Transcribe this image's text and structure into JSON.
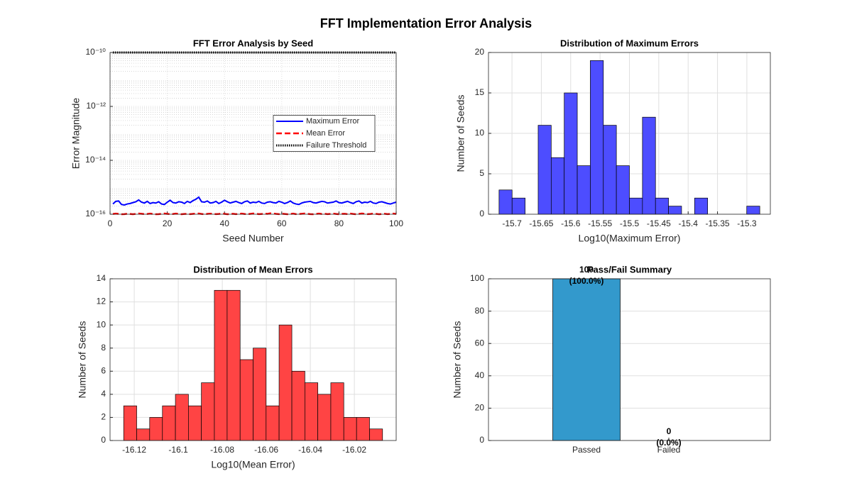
{
  "title": "FFT Implementation Error Analysis",
  "chart_data": [
    {
      "type": "line",
      "title": "FFT Error Analysis by Seed",
      "xlabel": "Seed Number",
      "ylabel": "Error Magnitude",
      "x": [
        1,
        2,
        3,
        4,
        5,
        6,
        7,
        8,
        9,
        10,
        11,
        12,
        13,
        14,
        15,
        16,
        17,
        18,
        19,
        20,
        21,
        22,
        23,
        24,
        25,
        26,
        27,
        28,
        29,
        30,
        31,
        32,
        33,
        34,
        35,
        36,
        37,
        38,
        39,
        40,
        41,
        42,
        43,
        44,
        45,
        46,
        47,
        48,
        49,
        50,
        51,
        52,
        53,
        54,
        55,
        56,
        57,
        58,
        59,
        60,
        61,
        62,
        63,
        64,
        65,
        66,
        67,
        68,
        69,
        70,
        71,
        72,
        73,
        74,
        75,
        76,
        77,
        78,
        79,
        80,
        81,
        82,
        83,
        84,
        85,
        86,
        87,
        88,
        89,
        90,
        91,
        92,
        93,
        94,
        95,
        96,
        97,
        98,
        99,
        100
      ],
      "series": [
        {
          "name": "Maximum Error",
          "color": "#0000ff",
          "style": "solid",
          "values": [
            2.4e-16,
            3e-16,
            3.1e-16,
            2.3e-16,
            2.2e-16,
            2.4e-16,
            2.5e-16,
            2.7e-16,
            2.9e-16,
            3.4e-16,
            2.8e-16,
            2.6e-16,
            3e-16,
            2.5e-16,
            2.7e-16,
            2.6e-16,
            2.9e-16,
            2.4e-16,
            2.3e-16,
            2.8e-16,
            3.3e-16,
            2.7e-16,
            2.6e-16,
            2.9e-16,
            2.8e-16,
            2.5e-16,
            3e-16,
            2.7e-16,
            3.2e-16,
            3.6e-16,
            4.3e-16,
            2.9e-16,
            2.8e-16,
            3.1e-16,
            2.6e-16,
            2.7e-16,
            3e-16,
            2.5e-16,
            2.8e-16,
            3.3e-16,
            2.9e-16,
            2.6e-16,
            2.8e-16,
            3e-16,
            2.7e-16,
            2.5e-16,
            2.9e-16,
            3.1e-16,
            2.6e-16,
            2.8e-16,
            2.7e-16,
            3e-16,
            2.6e-16,
            2.5e-16,
            2.8e-16,
            2.9e-16,
            2.7e-16,
            2.6e-16,
            3e-16,
            2.8e-16,
            2.5e-16,
            2.7e-16,
            3.1e-16,
            2.6e-16,
            2.4e-16,
            2.3e-16,
            2.6e-16,
            2.8e-16,
            2.9e-16,
            3e-16,
            2.7e-16,
            2.6e-16,
            2.8e-16,
            3e-16,
            2.9e-16,
            2.6e-16,
            2.7e-16,
            2.8e-16,
            3.1e-16,
            2.7e-16,
            2.6e-16,
            2.8e-16,
            3e-16,
            2.7e-16,
            2.5e-16,
            2.9e-16,
            3.1e-16,
            2.6e-16,
            2.8e-16,
            2.7e-16,
            3e-16,
            2.6e-16,
            2.5e-16,
            2.8e-16,
            2.9e-16,
            2.7e-16,
            2.5e-16,
            2.4e-16,
            2.6e-16,
            2.8e-16
          ]
        },
        {
          "name": "Mean Error",
          "color": "#ff0000",
          "style": "dashed",
          "values": [
            1.02e-16,
            1.05e-16,
            1.03e-16,
            1e-16,
            1.01e-16,
            1.04e-16,
            1.02e-16,
            1e-16,
            1.03e-16,
            1.06e-16,
            1.04e-16,
            1.01e-16,
            1.02e-16,
            1.05e-16,
            1.03e-16,
            1e-16,
            1.01e-16,
            1.04e-16,
            1.06e-16,
            1.03e-16,
            1.01e-16,
            1.02e-16,
            1.05e-16,
            1.03e-16,
            1e-16,
            1.02e-16,
            1.04e-16,
            1.01e-16,
            1.03e-16,
            1.05e-16,
            1.06e-16,
            1.02e-16,
            1e-16,
            1.03e-16,
            1.05e-16,
            1.04e-16,
            1.01e-16,
            1.02e-16,
            1.06e-16,
            1.03e-16,
            1e-16,
            1.02e-16,
            1.04e-16,
            1.01e-16,
            1.03e-16,
            1.05e-16,
            1.02e-16,
            1e-16,
            1.03e-16,
            1.06e-16,
            1.04e-16,
            1.01e-16,
            1.02e-16,
            1.05e-16,
            1.03e-16,
            1.08e-16,
            1.07e-16,
            1.03e-16,
            1.01e-16,
            1.04e-16,
            1.02e-16,
            1e-16,
            1.03e-16,
            1.05e-16,
            1.01e-16,
            1.02e-16,
            1.04e-16,
            1.06e-16,
            1.03e-16,
            1.01e-16,
            1e-16,
            1.03e-16,
            1.05e-16,
            1.02e-16,
            1.04e-16,
            1.01e-16,
            1.03e-16,
            1.06e-16,
            1.02e-16,
            1e-16,
            1.03e-16,
            1.04e-16,
            1.01e-16,
            1.05e-16,
            1.02e-16,
            1e-16,
            1.03e-16,
            1.06e-16,
            1.04e-16,
            1.01e-16,
            1.02e-16,
            1.05e-16,
            1.03e-16,
            1e-16,
            1.02e-16,
            1.04e-16,
            1.01e-16,
            1.03e-16,
            1.05e-16,
            1.02e-16
          ]
        },
        {
          "name": "Failure Threshold",
          "color": "#000000",
          "style": "dotted",
          "x": [
            1,
            100
          ],
          "values": [
            1e-10,
            1e-10
          ]
        }
      ],
      "xlim": [
        0,
        100
      ],
      "xticks": [
        0,
        20,
        40,
        60,
        80,
        100
      ],
      "ylog": true,
      "ylim": [
        1e-16,
        1e-10
      ],
      "yticks": [
        {
          "value": 1e-16,
          "label": "10⁻¹⁶"
        },
        {
          "value": 1e-14,
          "label": "10⁻¹⁴"
        },
        {
          "value": 1e-12,
          "label": "10⁻¹²"
        },
        {
          "value": 1e-10,
          "label": "10⁻¹⁰"
        }
      ],
      "grid": true,
      "legend": "east"
    },
    {
      "type": "histogram",
      "title": "Distribution of Maximum Errors",
      "xlabel": "Log10(Maximum Error)",
      "ylabel": "Number of Seeds",
      "color": "#4d4dff",
      "bins": [
        -15.722,
        -15.6998,
        -15.6776,
        -15.6554,
        -15.6332,
        -15.611,
        -15.5888,
        -15.5666,
        -15.5444,
        -15.5222,
        -15.5,
        -15.4778,
        -15.4556,
        -15.4334,
        -15.4112,
        -15.389,
        -15.3668,
        -15.3446,
        -15.3224,
        -15.3002,
        -15.278
      ],
      "values": [
        3,
        2,
        0,
        11,
        7,
        15,
        6,
        19,
        11,
        6,
        2,
        12,
        2,
        1,
        0,
        2,
        0,
        0,
        0,
        1
      ],
      "xlim": [
        -15.74,
        -15.26
      ],
      "xticks": [
        -15.7,
        -15.65,
        -15.6,
        -15.55,
        -15.5,
        -15.45,
        -15.4,
        -15.35,
        -15.3
      ],
      "ylim": [
        0,
        20
      ],
      "yticks": [
        0,
        5,
        10,
        15,
        20
      ],
      "grid": true
    },
    {
      "type": "histogram",
      "title": "Distribution of Mean Errors",
      "xlabel": "Log10(Mean Error)",
      "ylabel": "Number of Seeds",
      "color": "#ff4444",
      "bins": [
        -16.1248,
        -16.1189,
        -16.113,
        -16.1072,
        -16.1013,
        -16.0954,
        -16.0895,
        -16.0836,
        -16.0778,
        -16.0719,
        -16.066,
        -16.0601,
        -16.0542,
        -16.0484,
        -16.0425,
        -16.0366,
        -16.0307,
        -16.0248,
        -16.019,
        -16.0131,
        -16.0072
      ],
      "values": [
        3,
        1,
        2,
        3,
        4,
        3,
        5,
        13,
        13,
        7,
        8,
        3,
        10,
        6,
        5,
        4,
        5,
        2,
        2,
        1
      ],
      "xlim": [
        -16.131,
        -16.001
      ],
      "xticks": [
        -16.12,
        -16.1,
        -16.08,
        -16.06,
        -16.04,
        -16.02
      ],
      "ylim": [
        0,
        14
      ],
      "yticks": [
        0,
        2,
        4,
        6,
        8,
        10,
        12,
        14
      ],
      "grid": true
    },
    {
      "type": "bar",
      "title": "Pass/Fail Summary",
      "ylabel": "Number of Seeds",
      "color": "#3399cc",
      "categories": [
        "Passed",
        "Failed"
      ],
      "values": [
        100,
        0
      ],
      "value_labels": [
        [
          "100",
          "(100.0%)"
        ],
        [
          "0",
          "(0.0%)"
        ]
      ],
      "ylim": [
        0,
        100
      ],
      "yticks": [
        0,
        20,
        40,
        60,
        80,
        100
      ],
      "grid": true
    }
  ]
}
